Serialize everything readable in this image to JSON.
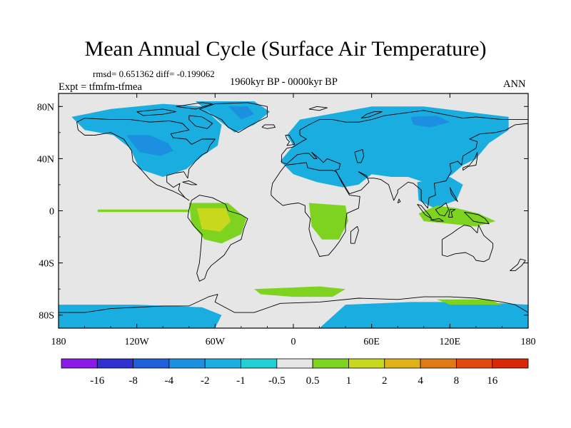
{
  "title": "Mean Annual Cycle (Surface Air Temperature)",
  "stats_line": "rmsd= 0.651362 diff= -0.199062",
  "period": "1960kyr BP - 0000kyr BP",
  "experiment": "Expt = tfmfm-tfmea",
  "season": "ANN",
  "chart_data": {
    "type": "heatmap",
    "title": "Mean Annual Cycle (Surface Air Temperature)",
    "subtitle": "1960kyr BP - 0000kyr BP",
    "variable": "Surface Air Temperature difference",
    "experiment": "tfmfm-tfmea",
    "season": "ANN",
    "rmsd": 0.651362,
    "diff": -0.199062,
    "x_ticks": [
      {
        "value": -180,
        "label": "180"
      },
      {
        "value": -120,
        "label": "120W"
      },
      {
        "value": -60,
        "label": "60W"
      },
      {
        "value": 0,
        "label": "0"
      },
      {
        "value": 60,
        "label": "60E"
      },
      {
        "value": 120,
        "label": "120E"
      },
      {
        "value": 180,
        "label": "180"
      }
    ],
    "y_ticks": [
      {
        "value": 80,
        "label": "80N"
      },
      {
        "value": 40,
        "label": "40N"
      },
      {
        "value": 0,
        "label": "0"
      },
      {
        "value": -40,
        "label": "40S"
      },
      {
        "value": -80,
        "label": "80S"
      }
    ],
    "xlim": [
      -180,
      180
    ],
    "ylim": [
      -90,
      90
    ],
    "colorbar": {
      "labels": [
        "-16",
        "-8",
        "-4",
        "-2",
        "-1",
        "-0.5",
        "0.5",
        "1",
        "2",
        "4",
        "8",
        "16"
      ],
      "colors": [
        "#8a1ae6",
        "#3030d0",
        "#1e60dc",
        "#1d8fe0",
        "#1aaee0",
        "#22cfd2",
        "#e6e6e6",
        "#7ed321",
        "#c8d81c",
        "#e0b21a",
        "#e07a14",
        "#e04a10",
        "#d82808"
      ]
    },
    "regions": [
      {
        "name": "north-america-cooling",
        "level": "-1",
        "color": "#1aaee0",
        "poly": [
          [
            -170,
            72
          ],
          [
            -140,
            78
          ],
          [
            -100,
            82
          ],
          [
            -70,
            80
          ],
          [
            -55,
            66
          ],
          [
            -58,
            50
          ],
          [
            -70,
            42
          ],
          [
            -82,
            32
          ],
          [
            -100,
            26
          ],
          [
            -118,
            32
          ],
          [
            -125,
            48
          ],
          [
            -138,
            58
          ],
          [
            -160,
            62
          ]
        ]
      },
      {
        "name": "north-america-strong-cooling",
        "level": "-2",
        "color": "#1d8fe0",
        "poly": [
          [
            -128,
            58
          ],
          [
            -110,
            58
          ],
          [
            -96,
            52
          ],
          [
            -92,
            46
          ],
          [
            -102,
            42
          ],
          [
            -118,
            45
          ]
        ]
      },
      {
        "name": "greenland-cooling",
        "level": "-1",
        "color": "#1aaee0",
        "poly": [
          [
            -75,
            84
          ],
          [
            -30,
            84
          ],
          [
            -18,
            76
          ],
          [
            -30,
            66
          ],
          [
            -45,
            60
          ],
          [
            -58,
            70
          ]
        ]
      },
      {
        "name": "greenland-strong-cooling",
        "level": "-2",
        "color": "#1d8fe0",
        "poly": [
          [
            -50,
            80
          ],
          [
            -35,
            80
          ],
          [
            -30,
            74
          ],
          [
            -40,
            70
          ]
        ]
      },
      {
        "name": "eurasia-cooling",
        "level": "-1",
        "color": "#1aaee0",
        "poly": [
          [
            5,
            70
          ],
          [
            60,
            80
          ],
          [
            100,
            80
          ],
          [
            140,
            75
          ],
          [
            165,
            72
          ],
          [
            165,
            62
          ],
          [
            150,
            52
          ],
          [
            140,
            40
          ],
          [
            130,
            35
          ],
          [
            122,
            28
          ],
          [
            110,
            20
          ],
          [
            100,
            22
          ],
          [
            88,
            26
          ],
          [
            75,
            26
          ],
          [
            60,
            28
          ],
          [
            50,
            20
          ],
          [
            38,
            18
          ],
          [
            18,
            22
          ],
          [
            0,
            28
          ],
          [
            -10,
            38
          ],
          [
            0,
            50
          ],
          [
            -5,
            58
          ]
        ]
      },
      {
        "name": "eurasia-strong-cooling",
        "level": "-2",
        "color": "#1d8fe0",
        "poly": [
          [
            90,
            72
          ],
          [
            110,
            73
          ],
          [
            120,
            68
          ],
          [
            105,
            64
          ],
          [
            92,
            66
          ]
        ]
      },
      {
        "name": "tropical-asia-cooling",
        "level": "-1",
        "color": "#1aaee0",
        "poly": [
          [
            95,
            22
          ],
          [
            120,
            26
          ],
          [
            130,
            20
          ],
          [
            125,
            8
          ],
          [
            108,
            2
          ],
          [
            96,
            8
          ]
        ]
      },
      {
        "name": "amazon-warming",
        "level": "1",
        "color": "#7ed321",
        "poly": [
          [
            -80,
            6
          ],
          [
            -50,
            6
          ],
          [
            -36,
            -6
          ],
          [
            -40,
            -18
          ],
          [
            -55,
            -25
          ],
          [
            -68,
            -22
          ],
          [
            -78,
            -10
          ]
        ]
      },
      {
        "name": "amazon-strong-warming",
        "level": "2",
        "color": "#c8d81c",
        "poly": [
          [
            -74,
            2
          ],
          [
            -52,
            2
          ],
          [
            -48,
            -8
          ],
          [
            -56,
            -16
          ],
          [
            -70,
            -14
          ]
        ]
      },
      {
        "name": "equatorial-atlantic-warming",
        "level": "1",
        "color": "#7ed321",
        "poly": [
          [
            -150,
            1
          ],
          [
            -80,
            1
          ],
          [
            -80,
            -1
          ],
          [
            -150,
            -1
          ]
        ]
      },
      {
        "name": "southern-africa-warming",
        "level": "1",
        "color": "#7ed321",
        "poly": [
          [
            12,
            6
          ],
          [
            40,
            4
          ],
          [
            42,
            -8
          ],
          [
            35,
            -22
          ],
          [
            22,
            -22
          ],
          [
            14,
            -12
          ]
        ]
      },
      {
        "name": "maritime-continent-warming",
        "level": "1",
        "color": "#7ed321",
        "poly": [
          [
            96,
            -2
          ],
          [
            110,
            4
          ],
          [
            125,
            2
          ],
          [
            142,
            -2
          ],
          [
            155,
            -8
          ],
          [
            140,
            -12
          ],
          [
            120,
            -10
          ],
          [
            100,
            -8
          ]
        ]
      },
      {
        "name": "southern-ocean-warming",
        "level": "1",
        "color": "#7ed321",
        "poly": [
          [
            -30,
            -60
          ],
          [
            20,
            -58
          ],
          [
            40,
            -60
          ],
          [
            30,
            -66
          ],
          [
            0,
            -66
          ],
          [
            -25,
            -64
          ]
        ]
      },
      {
        "name": "antarctic-west-cooling",
        "level": "-1",
        "color": "#1aaee0",
        "poly": [
          [
            -180,
            -72
          ],
          [
            -120,
            -72
          ],
          [
            -70,
            -74
          ],
          [
            -55,
            -80
          ],
          [
            -60,
            -90
          ],
          [
            -180,
            -90
          ]
        ]
      },
      {
        "name": "antarctic-east-cooling",
        "level": "-1",
        "color": "#1aaee0",
        "poly": [
          [
            20,
            -90
          ],
          [
            40,
            -72
          ],
          [
            90,
            -70
          ],
          [
            140,
            -70
          ],
          [
            180,
            -72
          ],
          [
            180,
            -90
          ]
        ]
      },
      {
        "name": "antarctic-east-warming",
        "level": "1",
        "color": "#7ed321",
        "poly": [
          [
            110,
            -68
          ],
          [
            150,
            -68
          ],
          [
            160,
            -72
          ],
          [
            120,
            -72
          ]
        ]
      }
    ]
  }
}
